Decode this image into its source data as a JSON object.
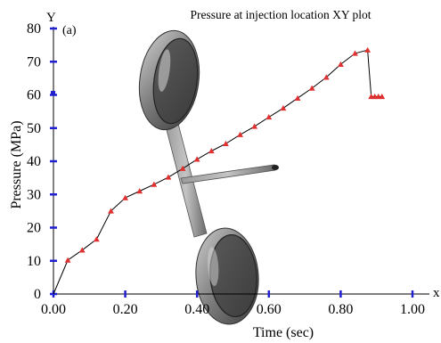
{
  "chart_data": {
    "type": "line",
    "title": "Pressure at injection location XY plot",
    "panel_label": "(a)",
    "xlabel": "Time (sec)",
    "ylabel": "Pressure (MPa)",
    "x_axis_letter": "x",
    "y_axis_letter": "Y",
    "xlim": [
      0,
      1.0
    ],
    "ylim": [
      0,
      80
    ],
    "x_ticks": [
      "0.00",
      "0.20",
      "0.40",
      "0.60",
      "0.80",
      "1.00"
    ],
    "y_ticks": [
      "0",
      "10",
      "20",
      "30",
      "40",
      "50",
      "60",
      "70",
      "80"
    ],
    "grid": false,
    "series": [
      {
        "marker": "triangle",
        "line_color": "#000000",
        "marker_color": "#e03030",
        "x": [
          0.0,
          0.04,
          0.08,
          0.12,
          0.16,
          0.2,
          0.24,
          0.28,
          0.32,
          0.36,
          0.4,
          0.44,
          0.48,
          0.52,
          0.56,
          0.6,
          0.64,
          0.68,
          0.72,
          0.76,
          0.8,
          0.84,
          0.875,
          0.885,
          0.895,
          0.905,
          0.915
        ],
        "y": [
          0.0,
          10.2,
          13.2,
          16.5,
          25.0,
          29.0,
          31.0,
          33.0,
          35.2,
          37.8,
          40.6,
          43.1,
          45.3,
          48.0,
          50.5,
          53.3,
          56.0,
          59.0,
          62.0,
          65.3,
          69.2,
          72.5,
          73.5,
          59.5,
          59.5,
          59.5,
          59.5
        ]
      }
    ]
  },
  "overlay": {
    "description_icon": "device-model-icon",
    "colors": {
      "device_dark": "#2e2e2e",
      "device_mid": "#6f6f6f",
      "device_light": "#b8b8b8",
      "axis_blue": "#2020d0"
    }
  }
}
